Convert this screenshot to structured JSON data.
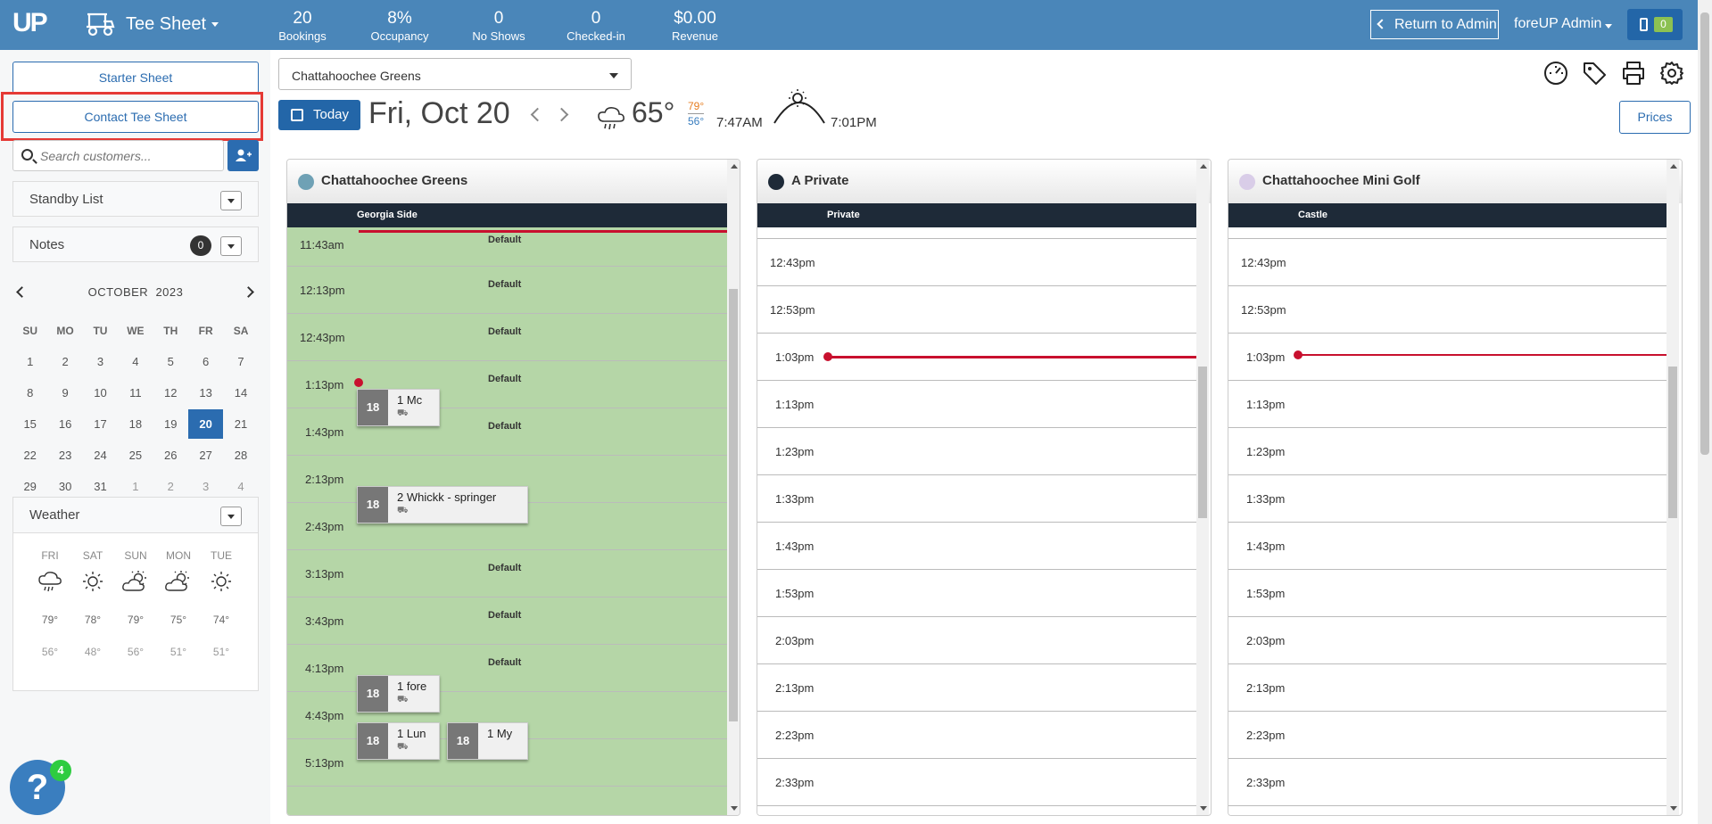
{
  "header": {
    "logo": "UP",
    "app_title": "Tee Sheet",
    "stats": [
      {
        "value": "20",
        "label": "Bookings"
      },
      {
        "value": "8%",
        "label": "Occupancy"
      },
      {
        "value": "0",
        "label": "No Shows"
      },
      {
        "value": "0",
        "label": "Checked-in"
      },
      {
        "value": "$0.00",
        "label": "Revenue"
      }
    ],
    "return_label": "Return to Admin",
    "user": "foreUP Admin",
    "notifications": "0"
  },
  "sidebar": {
    "starter_sheet": "Starter Sheet",
    "contact_tee_sheet": "Contact Tee Sheet",
    "search_placeholder": "Search customers...",
    "standby_list": "Standby List",
    "notes": "Notes",
    "notes_count": "0",
    "calendar": {
      "month": "OCTOBER",
      "year": "2023",
      "dow": [
        "SU",
        "MO",
        "TU",
        "WE",
        "TH",
        "FR",
        "SA"
      ],
      "weeks": [
        [
          "1",
          "2",
          "3",
          "4",
          "5",
          "6",
          "7"
        ],
        [
          "8",
          "9",
          "10",
          "11",
          "12",
          "13",
          "14"
        ],
        [
          "15",
          "16",
          "17",
          "18",
          "19",
          "20",
          "21"
        ],
        [
          "22",
          "23",
          "24",
          "25",
          "26",
          "27",
          "28"
        ],
        [
          "29",
          "30",
          "31",
          "1",
          "2",
          "3",
          "4"
        ]
      ],
      "selected": "20"
    },
    "weather": {
      "title": "Weather",
      "days": [
        {
          "day": "FRI",
          "icon": "rain-cloud-icon",
          "hi": "79°",
          "lo": "56°"
        },
        {
          "day": "SAT",
          "icon": "sun-icon",
          "hi": "78°",
          "lo": "48°"
        },
        {
          "day": "SUN",
          "icon": "partly-cloudy-icon",
          "hi": "79°",
          "lo": "56°"
        },
        {
          "day": "MON",
          "icon": "partly-cloudy-icon",
          "hi": "75°",
          "lo": "51°"
        },
        {
          "day": "TUE",
          "icon": "sun-icon",
          "hi": "74°",
          "lo": "51°"
        }
      ]
    },
    "help_badge": "4"
  },
  "toolbar": {
    "course": "Chattahoochee Greens",
    "today": "Today",
    "date": "Fri, Oct 20",
    "temp": "65°",
    "hi": "79°",
    "lo": "56°",
    "sunrise": "7:47AM",
    "sunset": "7:01PM",
    "prices": "Prices"
  },
  "sheets": [
    {
      "name": "Chattahoochee Greens",
      "dot_color": "#6fa1b5",
      "side": "Georgia Side",
      "times": [
        "11:43am",
        "12:13pm",
        "12:43pm",
        "1:13pm",
        "1:43pm",
        "2:13pm",
        "2:43pm",
        "3:13pm",
        "3:43pm",
        "4:13pm",
        "4:43pm",
        "5:13pm"
      ],
      "default_label": "Default",
      "bookings": [
        {
          "holes": "18",
          "name": "1  Mc"
        },
        {
          "holes": "18",
          "name": "2  Whickk - springer"
        },
        {
          "holes": "18",
          "name": "1  fore"
        },
        {
          "holes": "18",
          "name": "1  Lun"
        },
        {
          "holes": "18",
          "name": "1  My"
        }
      ]
    },
    {
      "name": "A Private",
      "dot_color": "#1e2a38",
      "side": "Private",
      "times": [
        "12:43pm",
        "12:53pm",
        "1:03pm",
        "1:13pm",
        "1:23pm",
        "1:33pm",
        "1:43pm",
        "1:53pm",
        "2:03pm",
        "2:13pm",
        "2:23pm",
        "2:33pm"
      ]
    },
    {
      "name": "Chattahoochee Mini Golf",
      "dot_color": "#d9cde8",
      "side": "Castle",
      "times": [
        "12:43pm",
        "12:53pm",
        "1:03pm",
        "1:13pm",
        "1:23pm",
        "1:33pm",
        "1:43pm",
        "1:53pm",
        "2:03pm",
        "2:13pm",
        "2:23pm",
        "2:33pm"
      ]
    }
  ],
  "colors": {
    "header_bg": "#4a86b9",
    "accent": "#2b6cb0",
    "sheet_green": "#b5d6a7",
    "now_line": "#c8102e",
    "highlight": "#e53935"
  }
}
